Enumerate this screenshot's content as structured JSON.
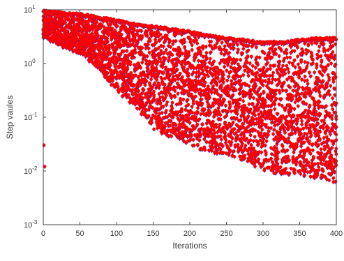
{
  "chart_data": {
    "type": "scatter",
    "xlabel": "Iterations",
    "ylabel": "Step vaules",
    "xlim": [
      0,
      400
    ],
    "ylim_log10": [
      -3,
      1
    ],
    "y_scale": "log",
    "grid": false,
    "x_ticks": [
      "0",
      "50",
      "100",
      "150",
      "200",
      "250",
      "300",
      "350",
      "400"
    ],
    "y_ticks": [
      {
        "base": "10",
        "exp": "-3"
      },
      {
        "base": "10",
        "exp": "-2"
      },
      {
        "base": "10",
        "exp": "-1"
      },
      {
        "base": "10",
        "exp": "0"
      },
      {
        "base": "10",
        "exp": "1"
      }
    ],
    "marker_colors": {
      "diamond": "#4b1fa8",
      "circle": "#ff0000"
    },
    "marker_series": {
      "iterations": [
        0,
        400
      ],
      "values_visible_range": [
        0.003,
        9
      ]
    },
    "upper_envelope": [
      {
        "x": 0,
        "y": 10
      },
      {
        "x": 25,
        "y": 9
      },
      {
        "x": 50,
        "y": 8.5
      },
      {
        "x": 75,
        "y": 7.5
      },
      {
        "x": 100,
        "y": 6.5
      },
      {
        "x": 125,
        "y": 5.5
      },
      {
        "x": 150,
        "y": 5
      },
      {
        "x": 175,
        "y": 4.5
      },
      {
        "x": 200,
        "y": 4
      },
      {
        "x": 225,
        "y": 3.5
      },
      {
        "x": 250,
        "y": 3
      },
      {
        "x": 275,
        "y": 2.8
      },
      {
        "x": 300,
        "y": 2.5
      },
      {
        "x": 325,
        "y": 2.6
      },
      {
        "x": 350,
        "y": 2.8
      },
      {
        "x": 375,
        "y": 3
      },
      {
        "x": 400,
        "y": 3
      }
    ],
    "lower_envelope": [
      {
        "x": 0,
        "y": 3
      },
      {
        "x": 25,
        "y": 2
      },
      {
        "x": 50,
        "y": 1.5
      },
      {
        "x": 75,
        "y": 0.8
      },
      {
        "x": 100,
        "y": 0.3
      },
      {
        "x": 125,
        "y": 0.15
      },
      {
        "x": 150,
        "y": 0.06
      },
      {
        "x": 175,
        "y": 0.04
      },
      {
        "x": 200,
        "y": 0.03
      },
      {
        "x": 225,
        "y": 0.02
      },
      {
        "x": 250,
        "y": 0.02
      },
      {
        "x": 275,
        "y": 0.015
      },
      {
        "x": 300,
        "y": 0.01
      },
      {
        "x": 325,
        "y": 0.008
      },
      {
        "x": 350,
        "y": 0.008
      },
      {
        "x": 375,
        "y": 0.007
      },
      {
        "x": 400,
        "y": 0.006
      }
    ],
    "outliers": [
      {
        "x": 1,
        "y": 0.03
      },
      {
        "x": 2,
        "y": 0.012
      }
    ]
  }
}
